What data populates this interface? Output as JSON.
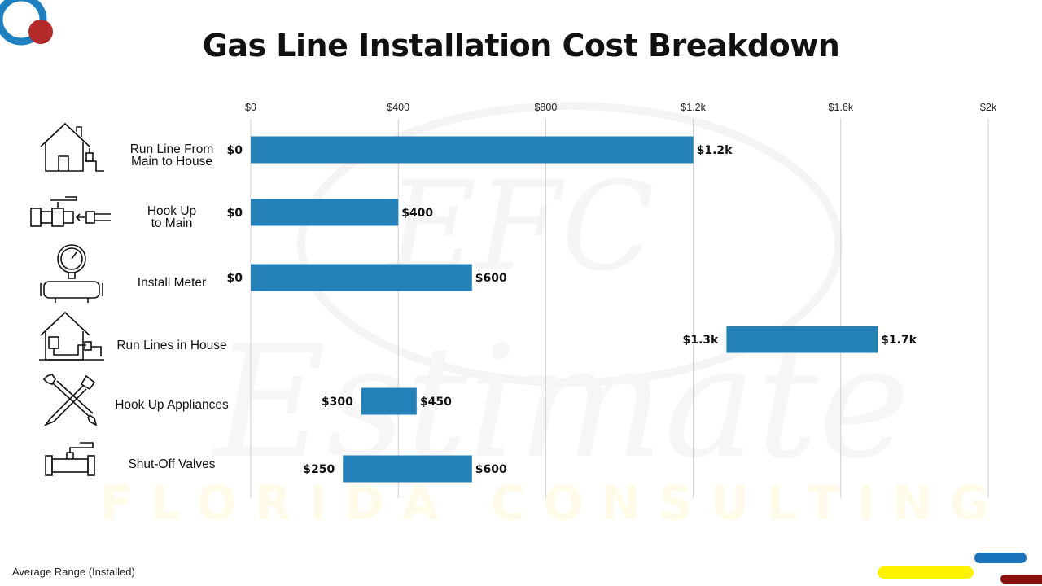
{
  "title": "Gas Line Installation Cost Breakdown",
  "footer_note": "Average Range (Installed)",
  "colors": {
    "bar": "#2381b8",
    "grid": "#cfcfcf",
    "logo_blue": "#1f80c0",
    "logo_red": "#b32a2a",
    "deco_blue": "#1a74bb",
    "deco_yellow": "#fff200",
    "deco_darkred": "#8a1010"
  },
  "chart_data": {
    "type": "bar",
    "orientation": "horizontal",
    "subtype": "floating-range",
    "title": "Gas Line Installation Cost Breakdown",
    "xlim": [
      0,
      2000
    ],
    "x_ticks": [
      0,
      400,
      800,
      1200,
      1600,
      2000
    ],
    "x_tick_labels": [
      "$0",
      "$400",
      "$800",
      "$1.2k",
      "$1.6k",
      "$2k"
    ],
    "grid": true,
    "legend": "none",
    "categories": [
      "Run Line From\nMain to House",
      "Hook Up\nto Main",
      "Install Meter",
      "Run Lines in House",
      "Hook Up Appliances",
      "Shut-Off Valves"
    ],
    "category_icons": [
      "house-gas-meter-icon",
      "pipe-valve-icon",
      "gas-meter-gauge-icon",
      "house-piping-icon",
      "wrench-screwdriver-icon",
      "shutoff-valve-icon"
    ],
    "low": [
      0,
      0,
      0,
      1290,
      300,
      250
    ],
    "high": [
      1200,
      400,
      600,
      1700,
      450,
      600
    ],
    "low_labels": [
      "$0",
      "$0",
      "$0",
      "$1.3k",
      "$300",
      "$250"
    ],
    "high_labels": [
      "$1.2k",
      "$400",
      "$600",
      "$1.7k",
      "$450",
      "$600"
    ]
  }
}
